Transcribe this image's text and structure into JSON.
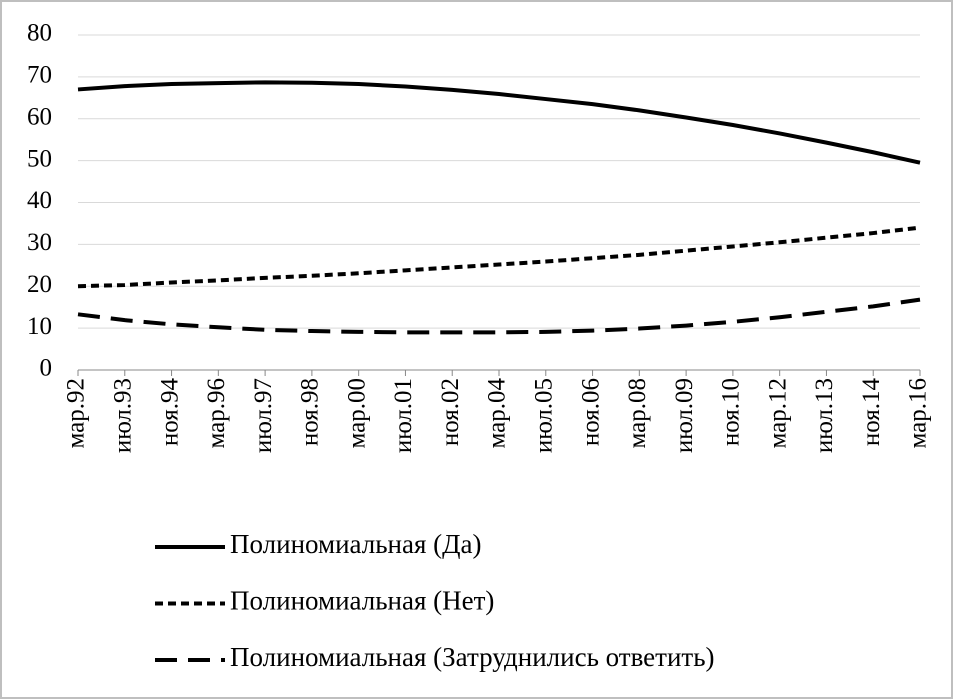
{
  "chart_data": {
    "type": "line",
    "categories": [
      "мар.92",
      "июл.93",
      "ноя.94",
      "мар.96",
      "июл.97",
      "ноя.98",
      "мар.00",
      "июл.01",
      "ноя.02",
      "мар.04",
      "июл.05",
      "ноя.06",
      "мар.08",
      "июл.09",
      "ноя.10",
      "мар.12",
      "июл.13",
      "ноя.14",
      "мар.16"
    ],
    "series": [
      {
        "name": "Полиномиальная (Да)",
        "color": "#000000",
        "dash": "solid",
        "values": [
          67,
          67.8,
          68.3,
          68.5,
          68.7,
          68.6,
          68.3,
          67.7,
          66.9,
          65.9,
          64.7,
          63.5,
          62.0,
          60.3,
          58.5,
          56.5,
          54.3,
          52.0,
          49.5
        ]
      },
      {
        "name": "Полиномиальная (Нет)",
        "color": "#000000",
        "dash": "short",
        "values": [
          20,
          20.3,
          20.9,
          21.4,
          22.0,
          22.5,
          23.1,
          23.8,
          24.5,
          25.2,
          25.9,
          26.7,
          27.5,
          28.5,
          29.5,
          30.5,
          31.6,
          32.7,
          34
        ]
      },
      {
        "name": "Полиномиальная (Затруднились ответить)",
        "color": "#000000",
        "dash": "long",
        "values": [
          13.3,
          11.9,
          10.9,
          10.2,
          9.6,
          9.3,
          9.1,
          9.0,
          9.0,
          9.0,
          9.1,
          9.4,
          9.9,
          10.6,
          11.5,
          12.6,
          13.9,
          15.2,
          16.8
        ]
      }
    ],
    "ylim": [
      0,
      80
    ],
    "yticks": [
      0,
      10,
      20,
      30,
      40,
      50,
      60,
      70,
      80
    ],
    "grid": true,
    "legend": "bottom"
  }
}
